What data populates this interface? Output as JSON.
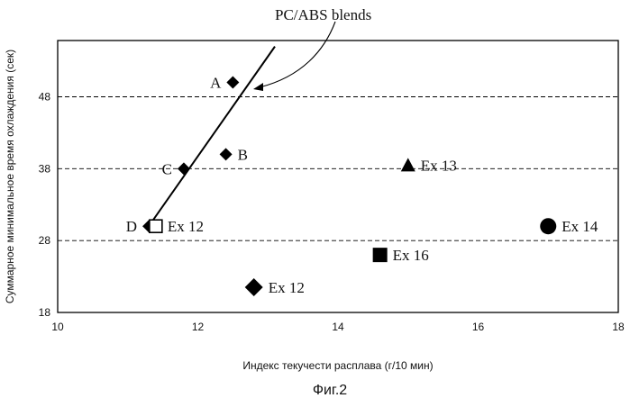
{
  "chart_data": {
    "type": "scatter",
    "xlabel": "Индекс текучести расплава (г/10 мин)",
    "ylabel": "Суммарное минимальное время охлаждения (сек)",
    "xlim": [
      10,
      18
    ],
    "ylim": [
      18,
      55
    ],
    "x_ticks": [
      10,
      12,
      14,
      16,
      18
    ],
    "y_ticks": [
      18,
      28,
      38,
      48
    ],
    "dashed_gridlines_y": [
      28,
      38,
      48
    ],
    "caption": "Фиг.2",
    "annotation": {
      "text": "PC/ABS blends",
      "target": "blend-line"
    },
    "blend_line": {
      "points": [
        [
          11.3,
          30
        ],
        [
          13.1,
          55
        ]
      ]
    },
    "points": [
      {
        "label": "A",
        "x": 12.5,
        "y": 50,
        "marker": "diamond",
        "label_side": "left"
      },
      {
        "label": "B",
        "x": 12.4,
        "y": 40,
        "marker": "diamond",
        "label_side": "right"
      },
      {
        "label": "C",
        "x": 11.8,
        "y": 38,
        "marker": "diamond",
        "label_side": "left"
      },
      {
        "label": "D",
        "x": 11.3,
        "y": 30,
        "marker": "diamond",
        "label_side": "left"
      },
      {
        "label": "Ex 12",
        "x": 11.4,
        "y": 30,
        "marker": "open-square",
        "label_side": "right"
      },
      {
        "label": "Ex 12",
        "x": 12.8,
        "y": 21.5,
        "marker": "diamond-large",
        "label_side": "right"
      },
      {
        "label": "Ex 13",
        "x": 15.0,
        "y": 38.5,
        "marker": "triangle",
        "label_side": "right"
      },
      {
        "label": "Ex 14",
        "x": 17.0,
        "y": 30,
        "marker": "circle",
        "label_side": "right"
      },
      {
        "label": "Ex 16",
        "x": 14.6,
        "y": 26,
        "marker": "square",
        "label_side": "right"
      }
    ]
  }
}
